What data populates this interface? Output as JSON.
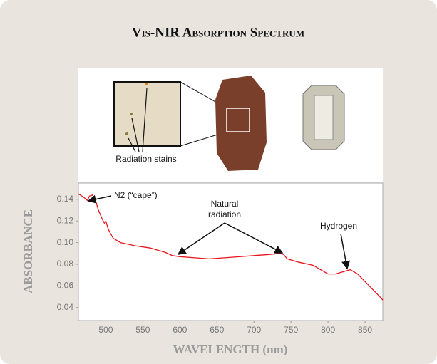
{
  "chart_data": {
    "type": "line",
    "title": "Vis-NIR Absorption Spectrum",
    "x_label": "WAVELENGTH (nm)",
    "y_label": "ABSORBANCE",
    "image_label": "Radiation stains",
    "annotations": [
      "N2 (“cape”)",
      "Natural radiation",
      "Hydrogen"
    ],
    "xlim": [
      463,
      874
    ],
    "ylim": [
      0.028,
      0.155
    ],
    "xticks": [
      500,
      550,
      600,
      650,
      700,
      750,
      800,
      850
    ],
    "yticks": [
      0.04,
      0.06,
      0.08,
      {
        "value": 0.1,
        "label": "0.10"
      },
      0.12,
      0.14
    ],
    "series": [
      {
        "color": "#e8141c",
        "x": [
          463,
          470,
          475,
          478,
          482,
          487,
          490,
          495,
          498,
          500,
          503,
          505,
          510,
          520,
          540,
          560,
          580,
          590,
          600,
          620,
          640,
          660,
          680,
          700,
          720,
          735,
          740,
          745,
          760,
          780,
          800,
          810,
          820,
          830,
          840,
          850,
          860,
          870,
          874
        ],
        "values": [
          0.145,
          0.142,
          0.139,
          0.143,
          0.144,
          0.137,
          0.13,
          0.122,
          0.118,
          0.12,
          0.113,
          0.11,
          0.104,
          0.1,
          0.097,
          0.095,
          0.091,
          0.088,
          0.087,
          0.086,
          0.085,
          0.086,
          0.087,
          0.088,
          0.089,
          0.09,
          0.089,
          0.085,
          0.082,
          0.079,
          0.071,
          0.071,
          0.073,
          0.075,
          0.071,
          0.064,
          0.057,
          0.05,
          0.047
        ]
      }
    ]
  }
}
